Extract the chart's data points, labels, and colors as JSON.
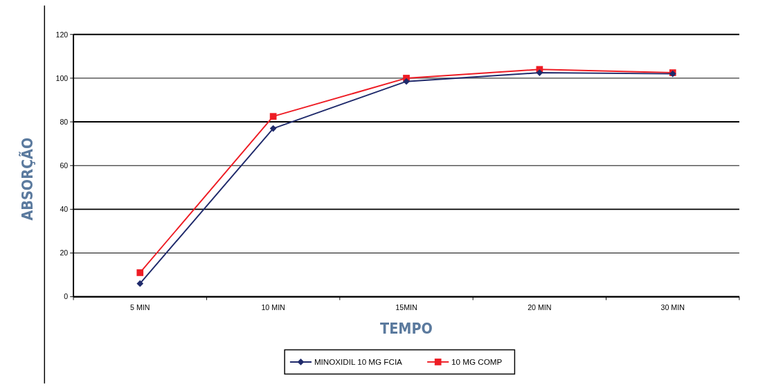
{
  "chart_data": {
    "type": "line",
    "xlabel": "TEMPO",
    "ylabel": "ABSORÇÃO",
    "categories": [
      "5 MIN",
      "10 MIN",
      "15MIN",
      "20 MIN",
      "30 MIN"
    ],
    "series": [
      {
        "name": "MINOXIDIL 10 MG FCIA",
        "color": "#1f2a6b",
        "marker": "diamond",
        "values": [
          6,
          77,
          98.5,
          102.5,
          102
        ]
      },
      {
        "name": "10 MG COMP",
        "color": "#ee1c24",
        "marker": "square",
        "values": [
          11,
          82.5,
          100,
          104,
          102.5
        ]
      }
    ],
    "ylim": [
      0,
      120
    ],
    "yticks": [
      0,
      20,
      40,
      60,
      80,
      100,
      120
    ],
    "grid": "y",
    "legend": "bottom",
    "line_style": "solid"
  }
}
